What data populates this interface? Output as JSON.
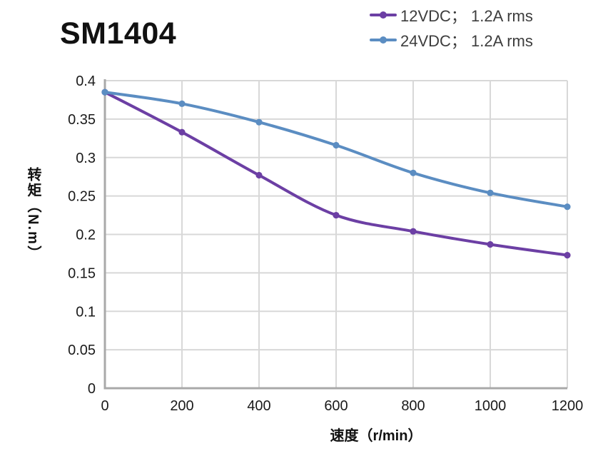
{
  "header": {
    "title": "SM1404"
  },
  "chart_data": {
    "type": "line",
    "title": "SM1404",
    "xlabel": "速度（r/min）",
    "ylabel": "转矩（N.m）",
    "x": [
      0,
      200,
      400,
      600,
      800,
      1000,
      1200
    ],
    "series": [
      {
        "name": "12VDC； 1.2A rms",
        "color": "#6C3FA4",
        "values": [
          0.385,
          0.333,
          0.277,
          0.225,
          0.204,
          0.187,
          0.173
        ]
      },
      {
        "name": "24VDC； 1.2A rms",
        "color": "#5B8DC2",
        "values": [
          0.385,
          0.37,
          0.346,
          0.316,
          0.28,
          0.254,
          0.236
        ]
      }
    ],
    "xlim": [
      0,
      1200
    ],
    "ylim": [
      0,
      0.4
    ],
    "x_ticks": [
      0,
      200,
      400,
      600,
      800,
      1000,
      1200
    ],
    "x_tick_labels": [
      "0",
      "200",
      "400",
      "600",
      "800",
      "1000",
      "1200"
    ],
    "y_ticks": [
      0,
      0.05,
      0.1,
      0.15,
      0.2,
      0.25,
      0.3,
      0.35,
      0.4
    ],
    "y_tick_labels": [
      "0",
      "0.05",
      "0.1",
      "0.15",
      "0.2",
      "0.25",
      "0.3",
      "0.35",
      "0.4"
    ],
    "grid": true,
    "legend_position": "top-right",
    "colors": {
      "grid": "#D8D8D8",
      "axis": "#A9A9A9",
      "tick_text": "#1A1A1A"
    }
  }
}
